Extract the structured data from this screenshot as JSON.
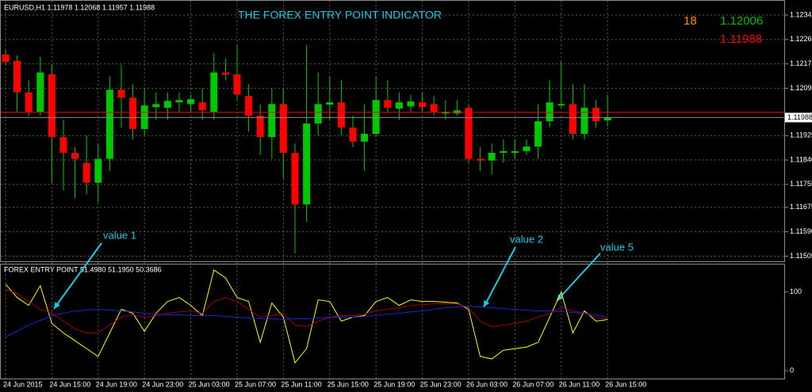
{
  "chart_data": [
    {
      "type": "candlestick",
      "title": "THE FOREX ENTRY POINT INDICATOR",
      "symbol_info": "EURUSD,H1  1.11978 1.12068 1.11957 1.11988",
      "spread": 18,
      "ask": 1.12006,
      "bid": 1.11988,
      "categories": [
        "24 Jun 2015",
        null,
        null,
        null,
        "24 Jun 15:00",
        null,
        null,
        null,
        "24 Jun 19:00",
        null,
        null,
        null,
        "24 Jun 23:00",
        null,
        null,
        null,
        "25 Jun 03:00",
        null,
        null,
        null,
        "25 Jun 07:00",
        null,
        null,
        null,
        "25 Jun 11:00",
        null,
        null,
        null,
        "25 Jun 15:00",
        null,
        null,
        null,
        "25 Jun 19:00",
        null,
        null,
        null,
        "25 Jun 23:00",
        null,
        null,
        null,
        "26 Jun 03:00",
        null,
        null,
        null,
        "26 Jun 07:00",
        null,
        null,
        null,
        "26 Jun 11:00",
        null,
        null,
        null,
        "26 Jun 15:00"
      ],
      "open": [
        1.12208,
        1.12186,
        1.12076,
        1.12008,
        1.12139,
        1.1192,
        1.11865,
        1.1183,
        1.11761,
        1.11844,
        1.12085,
        1.12057,
        1.11948,
        1.12024,
        1.12022,
        1.12041,
        1.12035,
        1.12041,
        1.12008,
        1.12145,
        1.12139,
        1.12063,
        1.11994,
        1.1192,
        1.12035,
        1.11865,
        1.11685,
        1.11967,
        1.12033,
        1.12041,
        1.11953,
        1.11904,
        1.11931,
        1.12049,
        1.12019,
        1.12027,
        1.12041,
        1.12035,
        1.12002,
        1.12002,
        1.12022,
        1.11844,
        1.11838,
        1.11865,
        1.11865,
        1.11871,
        1.11887,
        1.11975,
        1.1203,
        1.12035,
        1.11931,
        1.12022,
        1.11978
      ],
      "high": [
        1.12227,
        1.12205,
        1.12118,
        1.122,
        1.12172,
        1.11981,
        1.11885,
        1.11926,
        1.11898,
        1.12131,
        1.12172,
        1.12104,
        1.1209,
        1.12076,
        1.12076,
        1.12076,
        1.12068,
        1.1209,
        1.12213,
        1.12194,
        1.12241,
        1.12104,
        1.12035,
        1.1209,
        1.1209,
        1.11898,
        1.12241,
        1.12145,
        1.12131,
        1.12118,
        1.11994,
        1.12035,
        1.12131,
        1.12118,
        1.12076,
        1.12068,
        1.12076,
        1.12063,
        1.12049,
        1.12049,
        1.12035,
        1.11885,
        1.11898,
        1.11912,
        1.11912,
        1.11912,
        1.12035,
        1.12118,
        1.12186,
        1.12104,
        1.12104,
        1.12049,
        1.12068
      ],
      "low": [
        1.12172,
        1.12008,
        1.11994,
        1.11994,
        1.11761,
        1.11734,
        1.11707,
        1.1172,
        1.11693,
        1.11802,
        1.11953,
        1.11912,
        1.11926,
        1.11981,
        1.11981,
        1.12008,
        1.12008,
        1.11981,
        1.11981,
        1.12118,
        1.12049,
        1.11939,
        1.11857,
        1.11844,
        1.11775,
        1.11515,
        1.11624,
        1.11926,
        1.11981,
        1.11926,
        1.11885,
        1.11802,
        1.1192,
        1.12008,
        1.11981,
        1.12008,
        1.12008,
        1.11994,
        1.11981,
        1.11994,
        1.1183,
        1.11802,
        1.11789,
        1.1183,
        1.11844,
        1.11857,
        1.11844,
        1.11953,
        1.12022,
        1.11912,
        1.11912,
        1.11953,
        1.11957
      ],
      "close": [
        1.12181,
        1.12076,
        1.12008,
        1.12145,
        1.1192,
        1.11865,
        1.11844,
        1.11761,
        1.11844,
        1.12085,
        1.12057,
        1.11948,
        1.1203,
        1.12035,
        1.12046,
        1.12049,
        1.12052,
        1.12013,
        1.12145,
        1.12137,
        1.12068,
        1.11994,
        1.1192,
        1.12035,
        1.11865,
        1.11685,
        1.11967,
        1.12035,
        1.12041,
        1.11953,
        1.11904,
        1.11931,
        1.12049,
        1.12022,
        1.12041,
        1.12044,
        1.12024,
        1.12008,
        1.12008,
        1.12013,
        1.11844,
        1.11838,
        1.11865,
        1.11871,
        1.11871,
        1.11887,
        1.11975,
        1.12041,
        1.12035,
        1.11931,
        1.12022,
        1.11975,
        1.11988
      ],
      "bull_color": "#00c800",
      "bear_color": "#ff0000",
      "wick_color": "#00c800",
      "ylim": [
        1.11487,
        1.12392
      ],
      "yticks": [
        1.12345,
        {
          "value": 1.1226,
          "label": "1.12260"
        },
        1.12175,
        {
          "value": 1.1209,
          "label": "1.12090"
        },
        1.11925,
        {
          "value": 1.1184,
          "label": "1.11840"
        },
        1.11755,
        1.11675,
        {
          "value": 1.1159,
          "label": "1.11590"
        },
        1.11505
      ],
      "grid": true,
      "annotations": [
        "value 1",
        "value 2",
        "value 5"
      ]
    },
    {
      "type": "line",
      "title": "FOREX ENTRY POINT 51.4980 51.1950 50.3686",
      "series": [
        {
          "color": "#ffff00",
          "values": [
            110,
            93,
            83,
            108,
            60,
            48,
            38,
            28,
            18,
            48,
            78,
            73,
            50,
            73,
            88,
            93,
            83,
            70,
            128,
            118,
            93,
            88,
            36,
            86,
            68,
            10,
            28,
            90,
            88,
            63,
            68,
            70,
            88,
            93,
            83,
            90,
            88,
            88,
            87,
            86,
            78,
            18,
            15,
            26,
            28,
            30,
            36,
            68,
            100,
            48,
            76,
            63,
            65
          ]
        },
        {
          "color": "#a00000",
          "values": [
            103,
            98,
            88,
            78,
            73,
            63,
            53,
            48,
            48,
            58,
            68,
            71,
            68,
            70,
            73,
            75,
            76,
            73,
            88,
            93,
            88,
            78,
            68,
            70,
            73,
            58,
            56,
            63,
            68,
            70,
            70,
            72,
            76,
            78,
            80,
            83,
            84,
            85,
            85,
            85,
            80,
            63,
            56,
            58,
            60,
            63,
            68,
            73,
            80,
            76,
            73,
            68,
            66
          ]
        },
        {
          "color": "#1428d2",
          "values": [
            43,
            50,
            58,
            64,
            70,
            73,
            76,
            77,
            78,
            77,
            76,
            75,
            73,
            72,
            71,
            71,
            70,
            70,
            70,
            69,
            68,
            67,
            66,
            66,
            65,
            66,
            66,
            67,
            68,
            68,
            68,
            69,
            70,
            72,
            73,
            75,
            76,
            78,
            80,
            81,
            82,
            81,
            80,
            79,
            78,
            77,
            76,
            76,
            75,
            74,
            73,
            71,
            68
          ]
        }
      ],
      "ylim": [
        -10,
        136
      ],
      "yticks": [
        0,
        100
      ]
    }
  ]
}
